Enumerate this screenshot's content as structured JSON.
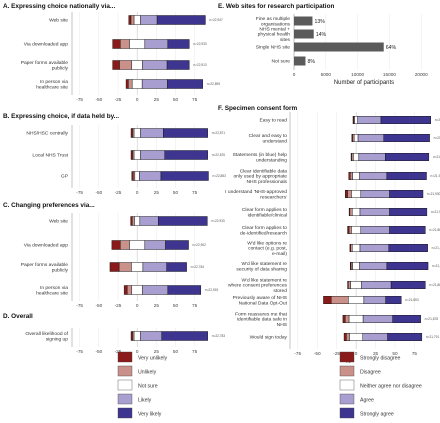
{
  "colors": {
    "very_neg": "#8b1a1a",
    "neg": "#c9918a",
    "neutral": "#ffffff",
    "pos": "#a89ecf",
    "very_pos": "#3d3590",
    "grey_bar": "#5a5a5a",
    "grid": "#e8e8e8"
  },
  "panel_titles": {
    "A": "A. Expressing choice nationally via...",
    "B": "B. Expressing choice, if data held by...",
    "C": "C. Changing preferences via...",
    "D": "D. Overall",
    "E": "E. Web sites for research participation",
    "F": "F. Specimen consent form"
  },
  "axis": {
    "xlabel_pct": "%",
    "likert_ticks": [
      "-75",
      "-50",
      "-25",
      "0",
      "25",
      "50",
      "75"
    ],
    "e_xlabel": "Number of participants",
    "e_ticks": [
      "0",
      "5000",
      "10000",
      "15000",
      "20000"
    ]
  },
  "legend_left": [
    "Very unlikely",
    "Unlikely",
    "Not sure",
    "Likely",
    "Very likely"
  ],
  "legend_right": [
    "Strongly disagree",
    "Disagree",
    "Neither agree nor disagree",
    "Agree",
    "Strongly agree"
  ],
  "chart_data": [
    {
      "panel": "A",
      "type": "bar",
      "title": "A. Expressing choice nationally via...",
      "xlabel": "",
      "xlim": [
        -85,
        95
      ],
      "categories": [
        "Very unlikely",
        "Unlikely",
        "Not sure",
        "Likely",
        "Very likely"
      ],
      "rows": [
        {
          "label": "Web site",
          "n": "n=22,947",
          "values": [
            3,
            4,
            8,
            22,
            63
          ]
        },
        {
          "label": "Via downloaded app",
          "n": "n=22,933",
          "values": [
            10,
            12,
            20,
            30,
            28
          ]
        },
        {
          "label": "Paper forms available publicly",
          "n": "n=22,913",
          "values": [
            9,
            16,
            14,
            32,
            29
          ]
        },
        {
          "label": "In person via healthcare site",
          "n": "n=22,899",
          "values": [
            3,
            5,
            13,
            33,
            46
          ]
        }
      ]
    },
    {
      "panel": "B",
      "type": "bar",
      "title": "B. Expressing choice, if data held by...",
      "xlabel": "",
      "xlim": [
        -85,
        95
      ],
      "categories": [
        "Very unlikely",
        "Unlikely",
        "Not sure",
        "Likely",
        "Very likely"
      ],
      "rows": [
        {
          "label": "NHS/HSC centrally",
          "n": "n=22,871",
          "values": [
            2,
            2,
            8,
            30,
            58
          ]
        },
        {
          "label": "Local NHS Trust",
          "n": "n=22,876",
          "values": [
            2,
            2,
            8,
            32,
            56
          ]
        },
        {
          "label": "GP",
          "n": "n=22,883",
          "values": [
            2,
            2,
            6,
            28,
            62
          ]
        }
      ]
    },
    {
      "panel": "C",
      "type": "bar",
      "title": "C. Changing preferences via...",
      "xlabel": "",
      "xlim": [
        -85,
        95
      ],
      "categories": [
        "Very unlikely",
        "Unlikely",
        "Not sure",
        "Likely",
        "Very likely"
      ],
      "rows": [
        {
          "label": "Web site",
          "n": "n=22,933",
          "values": [
            2,
            3,
            7,
            24,
            64
          ]
        },
        {
          "label": "Via downloaded app",
          "n": "n=22,902",
          "values": [
            11,
            12,
            20,
            27,
            30
          ]
        },
        {
          "label": "Paper forms available publicly",
          "n": "n=22,784",
          "values": [
            12,
            16,
            15,
            31,
            26
          ]
        },
        {
          "label": "In person via healthcare site",
          "n": "n=22,915",
          "values": [
            4,
            6,
            14,
            33,
            43
          ]
        }
      ]
    },
    {
      "panel": "D",
      "type": "bar",
      "title": "D. Overall",
      "xlabel": "%",
      "xlim": [
        -85,
        95
      ],
      "categories": [
        "Very unlikely",
        "Unlikely",
        "Not sure",
        "Likely",
        "Very likely"
      ],
      "rows": [
        {
          "label": "Overall likelihood of signing up",
          "n": "n=22,783",
          "values": [
            2,
            2,
            8,
            28,
            60
          ]
        }
      ]
    },
    {
      "panel": "E",
      "type": "bar",
      "title": "E. Web sites for research participation",
      "xlabel": "Number of participants",
      "xlim": [
        0,
        22000
      ],
      "categories": [
        "Fine as multiple organisations",
        "NHS mental + physical health sites",
        "Single NHS site",
        "Not sure"
      ],
      "values": [
        2900,
        3100,
        14100,
        1800
      ],
      "labels": [
        "13%",
        "14%",
        "64%",
        "8%"
      ]
    },
    {
      "panel": "F",
      "type": "bar",
      "title": "F. Specimen consent form",
      "xlabel": "%",
      "xlim": [
        -85,
        95
      ],
      "categories": [
        "Strongly disagree",
        "Disagree",
        "Neither agree nor disagree",
        "Agree",
        "Strongly agree"
      ],
      "rows": [
        {
          "label": "Easy to read",
          "n": "n=21,956",
          "values": [
            1,
            1,
            4,
            30,
            64
          ]
        },
        {
          "label": "Clear and easy to understand",
          "n": "n=21,974",
          "values": [
            1,
            2,
            5,
            33,
            59
          ]
        },
        {
          "label": "Statements (in blue) help understanding",
          "n": "n=21,961",
          "values": [
            1,
            2,
            7,
            34,
            56
          ]
        },
        {
          "label": "Clear identifiable data only used by appropriate NHS professionals",
          "n": "n=21,934",
          "values": [
            2,
            3,
            9,
            35,
            51
          ]
        },
        {
          "label": "I understand 'NHS-approved researchers'",
          "n": "n=21,930",
          "values": [
            3,
            5,
            12,
            37,
            43
          ]
        },
        {
          "label": "Clear form applies to identifiable/clinical",
          "n": "n=21,902",
          "values": [
            1,
            3,
            10,
            38,
            48
          ]
        },
        {
          "label": "Clear form applies to de-identified/research",
          "n": "n=21,888",
          "values": [
            2,
            3,
            12,
            37,
            46
          ]
        },
        {
          "label": "W'd like options re contact (e.g. post, e-mail)",
          "n": "n=21,870",
          "values": [
            1,
            2,
            10,
            37,
            50
          ]
        },
        {
          "label": "W'd like statement re security of data sharing",
          "n": "n=21,877",
          "values": [
            1,
            2,
            9,
            35,
            53
          ]
        },
        {
          "label": "W'd like statement re where consent preferences stored",
          "n": "n=21,880",
          "values": [
            1,
            3,
            14,
            38,
            44
          ]
        },
        {
          "label": "Previously aware of NHS National Data Opt-Out",
          "n": "n=21,853",
          "values": [
            10,
            22,
            20,
            28,
            20
          ]
        },
        {
          "label": "Form reassures me that identifiable data safe in NHS",
          "n": "n=21,878",
          "values": [
            3,
            5,
            18,
            38,
            36
          ]
        },
        {
          "label": "Would sign today",
          "n": "n=21,791",
          "values": [
            3,
            4,
            17,
            32,
            44
          ]
        }
      ]
    }
  ]
}
